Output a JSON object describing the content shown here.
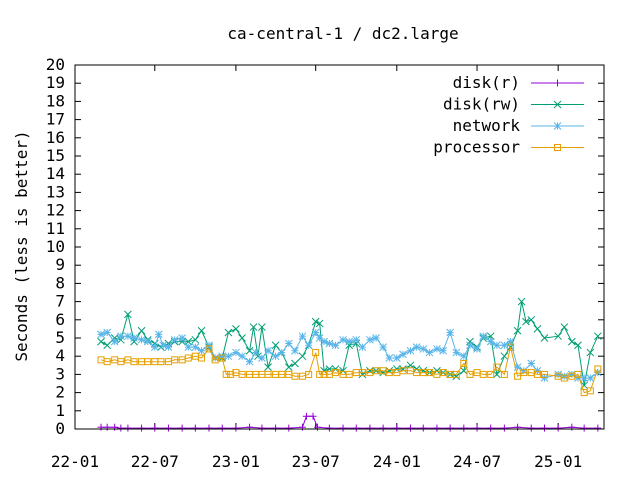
{
  "chart_data": {
    "type": "line",
    "title": "ca-central-1 / dc2.large",
    "ylabel": "Seconds (less is better)",
    "xlabel": "",
    "ylim": [
      0,
      20
    ],
    "yticks": [
      "0",
      "1",
      "2",
      "3",
      "4",
      "5",
      "6",
      "7",
      "8",
      "9",
      "10",
      "11",
      "12",
      "13",
      "14",
      "15",
      "16",
      "17",
      "18",
      "19",
      "20"
    ],
    "xlim": [
      "2022-01-01",
      "2025-04-15"
    ],
    "xticks": [
      {
        "label": "22-01",
        "date": "2022-01-01"
      },
      {
        "label": "22-07",
        "date": "2022-07-01"
      },
      {
        "label": "23-01",
        "date": "2023-01-01"
      },
      {
        "label": "23-07",
        "date": "2023-07-01"
      },
      {
        "label": "24-01",
        "date": "2024-01-01"
      },
      {
        "label": "24-07",
        "date": "2024-07-01"
      },
      {
        "label": "25-01",
        "date": "2025-01-01"
      }
    ],
    "legend_position": "top-right",
    "grid": false,
    "series": [
      {
        "name": "disk(r)",
        "color": "#9400d3",
        "marker": "plus",
        "points": [
          [
            "2022-03-01",
            0.1
          ],
          [
            "2022-03-15",
            0.1
          ],
          [
            "2022-04-01",
            0.1
          ],
          [
            "2022-04-15",
            0.05
          ],
          [
            "2022-05-01",
            0.05
          ],
          [
            "2022-06-01",
            0.05
          ],
          [
            "2022-07-01",
            0.05
          ],
          [
            "2022-08-01",
            0.05
          ],
          [
            "2022-09-01",
            0.05
          ],
          [
            "2022-10-01",
            0.05
          ],
          [
            "2022-11-01",
            0.05
          ],
          [
            "2022-12-01",
            0.05
          ],
          [
            "2023-01-01",
            0.05
          ],
          [
            "2023-02-01",
            0.1
          ],
          [
            "2023-03-01",
            0.05
          ],
          [
            "2023-04-01",
            0.05
          ],
          [
            "2023-05-01",
            0.05
          ],
          [
            "2023-06-01",
            0.1
          ],
          [
            "2023-06-10",
            0.7
          ],
          [
            "2023-06-25",
            0.7
          ],
          [
            "2023-07-05",
            0.1
          ],
          [
            "2023-08-01",
            0.05
          ],
          [
            "2023-09-01",
            0.05
          ],
          [
            "2023-10-01",
            0.05
          ],
          [
            "2023-11-01",
            0.05
          ],
          [
            "2023-12-01",
            0.05
          ],
          [
            "2024-01-01",
            0.05
          ],
          [
            "2024-02-01",
            0.05
          ],
          [
            "2024-03-01",
            0.05
          ],
          [
            "2024-04-01",
            0.05
          ],
          [
            "2024-05-01",
            0.05
          ],
          [
            "2024-06-01",
            0.05
          ],
          [
            "2024-07-01",
            0.05
          ],
          [
            "2024-08-01",
            0.05
          ],
          [
            "2024-09-01",
            0.05
          ],
          [
            "2024-10-01",
            0.1
          ],
          [
            "2024-11-01",
            0.05
          ],
          [
            "2024-12-01",
            0.05
          ],
          [
            "2025-01-01",
            0.05
          ],
          [
            "2025-02-01",
            0.1
          ],
          [
            "2025-03-01",
            0.05
          ],
          [
            "2025-04-01",
            0.05
          ]
        ]
      },
      {
        "name": "disk(rw)",
        "color": "#009e73",
        "marker": "x",
        "points": [
          [
            "2022-03-01",
            4.8
          ],
          [
            "2022-03-15",
            4.6
          ],
          [
            "2022-04-01",
            5.0
          ],
          [
            "2022-04-15",
            4.9
          ],
          [
            "2022-05-01",
            6.3
          ],
          [
            "2022-05-15",
            4.8
          ],
          [
            "2022-06-01",
            5.4
          ],
          [
            "2022-06-15",
            4.9
          ],
          [
            "2022-07-01",
            4.7
          ],
          [
            "2022-07-15",
            4.5
          ],
          [
            "2022-08-01",
            4.7
          ],
          [
            "2022-08-15",
            4.8
          ],
          [
            "2022-09-01",
            4.8
          ],
          [
            "2022-09-15",
            4.8
          ],
          [
            "2022-10-01",
            4.9
          ],
          [
            "2022-10-15",
            5.4
          ],
          [
            "2022-11-01",
            4.5
          ],
          [
            "2022-11-15",
            3.9
          ],
          [
            "2022-12-01",
            3.9
          ],
          [
            "2022-12-15",
            5.3
          ],
          [
            "2023-01-01",
            5.5
          ],
          [
            "2023-01-15",
            5.0
          ],
          [
            "2023-02-01",
            4.3
          ],
          [
            "2023-02-10",
            5.6
          ],
          [
            "2023-02-20",
            4.0
          ],
          [
            "2023-03-01",
            5.6
          ],
          [
            "2023-03-15",
            3.4
          ],
          [
            "2023-04-01",
            4.6
          ],
          [
            "2023-04-15",
            4.2
          ],
          [
            "2023-05-01",
            3.4
          ],
          [
            "2023-05-15",
            3.6
          ],
          [
            "2023-06-01",
            4.0
          ],
          [
            "2023-06-15",
            4.6
          ],
          [
            "2023-07-01",
            5.9
          ],
          [
            "2023-07-10",
            5.8
          ],
          [
            "2023-07-20",
            3.2
          ],
          [
            "2023-08-01",
            3.3
          ],
          [
            "2023-08-15",
            3.3
          ],
          [
            "2023-09-01",
            3.2
          ],
          [
            "2023-09-15",
            4.6
          ],
          [
            "2023-10-01",
            4.7
          ],
          [
            "2023-10-15",
            3.0
          ],
          [
            "2023-11-01",
            3.2
          ],
          [
            "2023-11-15",
            3.2
          ],
          [
            "2023-12-01",
            3.1
          ],
          [
            "2023-12-15",
            3.2
          ],
          [
            "2024-01-01",
            3.3
          ],
          [
            "2024-01-15",
            3.3
          ],
          [
            "2024-02-01",
            3.5
          ],
          [
            "2024-02-15",
            3.3
          ],
          [
            "2024-03-01",
            3.2
          ],
          [
            "2024-03-15",
            3.1
          ],
          [
            "2024-04-01",
            3.2
          ],
          [
            "2024-04-15",
            3.1
          ],
          [
            "2024-05-01",
            3.0
          ],
          [
            "2024-05-15",
            2.9
          ],
          [
            "2024-06-01",
            3.2
          ],
          [
            "2024-06-15",
            4.8
          ],
          [
            "2024-07-01",
            4.5
          ],
          [
            "2024-07-15",
            5.0
          ],
          [
            "2024-08-01",
            5.1
          ],
          [
            "2024-08-15",
            3.0
          ],
          [
            "2024-09-01",
            4.0
          ],
          [
            "2024-09-15",
            4.5
          ],
          [
            "2024-10-01",
            5.4
          ],
          [
            "2024-10-10",
            7.0
          ],
          [
            "2024-10-20",
            5.9
          ],
          [
            "2024-11-01",
            6.0
          ],
          [
            "2024-11-15",
            5.5
          ],
          [
            "2024-12-01",
            5.0
          ],
          [
            "2025-01-01",
            5.1
          ],
          [
            "2025-01-15",
            5.6
          ],
          [
            "2025-02-01",
            4.8
          ],
          [
            "2025-02-15",
            4.6
          ],
          [
            "2025-03-01",
            2.4
          ],
          [
            "2025-03-15",
            4.2
          ],
          [
            "2025-04-01",
            5.1
          ]
        ]
      },
      {
        "name": "network",
        "color": "#56b4e9",
        "marker": "star",
        "points": [
          [
            "2022-03-01",
            5.2
          ],
          [
            "2022-03-15",
            5.3
          ],
          [
            "2022-04-01",
            4.8
          ],
          [
            "2022-04-15",
            5.1
          ],
          [
            "2022-05-01",
            5.1
          ],
          [
            "2022-05-15",
            5.0
          ],
          [
            "2022-06-01",
            4.9
          ],
          [
            "2022-06-15",
            4.8
          ],
          [
            "2022-07-01",
            4.5
          ],
          [
            "2022-07-10",
            5.2
          ],
          [
            "2022-07-20",
            4.6
          ],
          [
            "2022-08-01",
            4.5
          ],
          [
            "2022-08-15",
            4.9
          ],
          [
            "2022-09-01",
            5.0
          ],
          [
            "2022-09-15",
            4.5
          ],
          [
            "2022-10-01",
            4.5
          ],
          [
            "2022-10-15",
            4.3
          ],
          [
            "2022-11-01",
            4.6
          ],
          [
            "2022-11-15",
            3.9
          ],
          [
            "2022-12-01",
            4.0
          ],
          [
            "2022-12-15",
            4.0
          ],
          [
            "2023-01-01",
            4.2
          ],
          [
            "2023-01-15",
            4.0
          ],
          [
            "2023-02-01",
            3.7
          ],
          [
            "2023-02-15",
            4.2
          ],
          [
            "2023-03-01",
            3.9
          ],
          [
            "2023-03-15",
            4.3
          ],
          [
            "2023-04-01",
            4.0
          ],
          [
            "2023-04-15",
            4.2
          ],
          [
            "2023-05-01",
            4.7
          ],
          [
            "2023-05-15",
            4.3
          ],
          [
            "2023-06-01",
            5.1
          ],
          [
            "2023-06-15",
            4.6
          ],
          [
            "2023-07-01",
            5.3
          ],
          [
            "2023-07-10",
            5.0
          ],
          [
            "2023-07-20",
            4.8
          ],
          [
            "2023-08-01",
            4.7
          ],
          [
            "2023-08-15",
            4.6
          ],
          [
            "2023-09-01",
            4.9
          ],
          [
            "2023-09-15",
            4.8
          ],
          [
            "2023-10-01",
            4.9
          ],
          [
            "2023-10-15",
            4.5
          ],
          [
            "2023-11-01",
            4.9
          ],
          [
            "2023-11-15",
            5.0
          ],
          [
            "2023-12-01",
            4.5
          ],
          [
            "2023-12-15",
            3.9
          ],
          [
            "2024-01-01",
            3.9
          ],
          [
            "2024-01-15",
            4.1
          ],
          [
            "2024-02-01",
            4.3
          ],
          [
            "2024-02-15",
            4.5
          ],
          [
            "2024-03-01",
            4.4
          ],
          [
            "2024-03-15",
            4.2
          ],
          [
            "2024-04-01",
            4.4
          ],
          [
            "2024-04-15",
            4.3
          ],
          [
            "2024-05-01",
            5.3
          ],
          [
            "2024-05-15",
            4.2
          ],
          [
            "2024-06-01",
            4.0
          ],
          [
            "2024-06-15",
            4.6
          ],
          [
            "2024-07-01",
            4.4
          ],
          [
            "2024-07-15",
            5.1
          ],
          [
            "2024-08-01",
            4.8
          ],
          [
            "2024-08-15",
            4.6
          ],
          [
            "2024-09-01",
            4.6
          ],
          [
            "2024-09-15",
            4.8
          ],
          [
            "2024-10-01",
            3.4
          ],
          [
            "2024-10-15",
            3.2
          ],
          [
            "2024-11-01",
            3.6
          ],
          [
            "2024-11-15",
            3.2
          ],
          [
            "2024-12-01",
            2.8
          ],
          [
            "2025-01-01",
            3.0
          ],
          [
            "2025-01-15",
            2.9
          ],
          [
            "2025-02-01",
            3.0
          ],
          [
            "2025-02-15",
            2.8
          ],
          [
            "2025-03-01",
            2.8
          ],
          [
            "2025-03-15",
            2.8
          ],
          [
            "2025-04-01",
            3.1
          ]
        ]
      },
      {
        "name": "processor",
        "color": "#e69f00",
        "marker": "square",
        "points": [
          [
            "2022-03-01",
            3.8
          ],
          [
            "2022-03-15",
            3.7
          ],
          [
            "2022-04-01",
            3.8
          ],
          [
            "2022-04-15",
            3.7
          ],
          [
            "2022-05-01",
            3.8
          ],
          [
            "2022-05-15",
            3.7
          ],
          [
            "2022-06-01",
            3.7
          ],
          [
            "2022-06-15",
            3.7
          ],
          [
            "2022-07-01",
            3.7
          ],
          [
            "2022-07-15",
            3.7
          ],
          [
            "2022-08-01",
            3.7
          ],
          [
            "2022-08-15",
            3.8
          ],
          [
            "2022-09-01",
            3.8
          ],
          [
            "2022-09-15",
            3.9
          ],
          [
            "2022-10-01",
            4.0
          ],
          [
            "2022-10-15",
            3.9
          ],
          [
            "2022-11-01",
            4.4
          ],
          [
            "2022-11-15",
            3.8
          ],
          [
            "2022-12-01",
            3.9
          ],
          [
            "2022-12-10",
            3.0
          ],
          [
            "2022-12-20",
            3.0
          ],
          [
            "2023-01-01",
            3.1
          ],
          [
            "2023-01-15",
            3.0
          ],
          [
            "2023-02-01",
            3.0
          ],
          [
            "2023-02-15",
            3.0
          ],
          [
            "2023-03-01",
            3.0
          ],
          [
            "2023-03-15",
            3.0
          ],
          [
            "2023-04-01",
            3.0
          ],
          [
            "2023-04-15",
            3.0
          ],
          [
            "2023-05-01",
            3.0
          ],
          [
            "2023-05-15",
            2.9
          ],
          [
            "2023-06-01",
            2.9
          ],
          [
            "2023-06-15",
            3.0
          ],
          [
            "2023-07-01",
            4.2
          ],
          [
            "2023-07-10",
            3.0
          ],
          [
            "2023-07-20",
            3.0
          ],
          [
            "2023-08-01",
            3.0
          ],
          [
            "2023-08-15",
            3.1
          ],
          [
            "2023-09-01",
            3.0
          ],
          [
            "2023-09-15",
            3.0
          ],
          [
            "2023-10-01",
            3.1
          ],
          [
            "2023-10-15",
            3.1
          ],
          [
            "2023-11-01",
            3.1
          ],
          [
            "2023-11-15",
            3.2
          ],
          [
            "2023-12-01",
            3.2
          ],
          [
            "2023-12-15",
            3.1
          ],
          [
            "2024-01-01",
            3.1
          ],
          [
            "2024-01-15",
            3.2
          ],
          [
            "2024-02-01",
            3.2
          ],
          [
            "2024-02-15",
            3.1
          ],
          [
            "2024-03-01",
            3.1
          ],
          [
            "2024-03-15",
            3.1
          ],
          [
            "2024-04-01",
            3.0
          ],
          [
            "2024-04-15",
            3.1
          ],
          [
            "2024-05-01",
            3.0
          ],
          [
            "2024-05-15",
            3.0
          ],
          [
            "2024-06-01",
            3.6
          ],
          [
            "2024-06-15",
            3.0
          ],
          [
            "2024-07-01",
            3.1
          ],
          [
            "2024-07-15",
            3.0
          ],
          [
            "2024-08-01",
            3.0
          ],
          [
            "2024-08-15",
            3.4
          ],
          [
            "2024-09-01",
            3.0
          ],
          [
            "2024-09-15",
            4.5
          ],
          [
            "2024-10-01",
            2.9
          ],
          [
            "2024-10-15",
            3.1
          ],
          [
            "2024-11-01",
            3.1
          ],
          [
            "2024-11-15",
            3.0
          ],
          [
            "2024-12-01",
            3.0
          ],
          [
            "2025-01-01",
            2.9
          ],
          [
            "2025-01-15",
            2.8
          ],
          [
            "2025-02-01",
            2.9
          ],
          [
            "2025-02-15",
            3.0
          ],
          [
            "2025-03-01",
            2.0
          ],
          [
            "2025-03-15",
            2.1
          ],
          [
            "2025-04-01",
            3.3
          ]
        ]
      }
    ]
  }
}
